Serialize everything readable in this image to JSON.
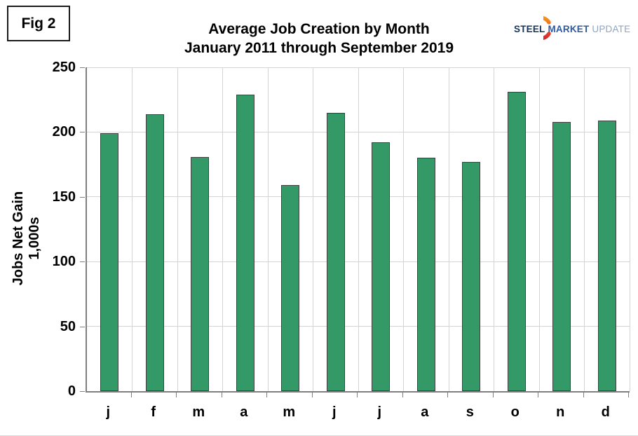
{
  "figure": {
    "label": "Fig 2"
  },
  "header": {
    "title": "Average Job Creation by Month",
    "subtitle": "January 2011 through September 2019"
  },
  "logo": {
    "steel": "STEEL",
    "market": "MARKET",
    "update": "UPDATE",
    "crescent_top_color": "#f7941d",
    "crescent_bottom_color": "#d9272e"
  },
  "chart_data": {
    "type": "bar",
    "title": "Average Job Creation by Month",
    "subtitle": "January 2011 through September 2019",
    "categories": [
      "j",
      "f",
      "m",
      "a",
      "m",
      "j",
      "j",
      "a",
      "s",
      "o",
      "n",
      "d"
    ],
    "values": [
      199,
      214,
      181,
      229,
      159,
      215,
      192,
      180,
      177,
      231,
      208,
      209
    ],
    "xlabel": "",
    "ylabel": "Jobs Net Gain 1,000s",
    "ylim": [
      0,
      250
    ],
    "yticks": [
      0,
      50,
      100,
      150,
      200,
      250
    ],
    "grid": true,
    "legend_position": "none",
    "bar_color": "#339966",
    "bar_border_color": "#404040",
    "grid_color": "#d4d4d4",
    "axis_color": "#7f7f7f"
  }
}
